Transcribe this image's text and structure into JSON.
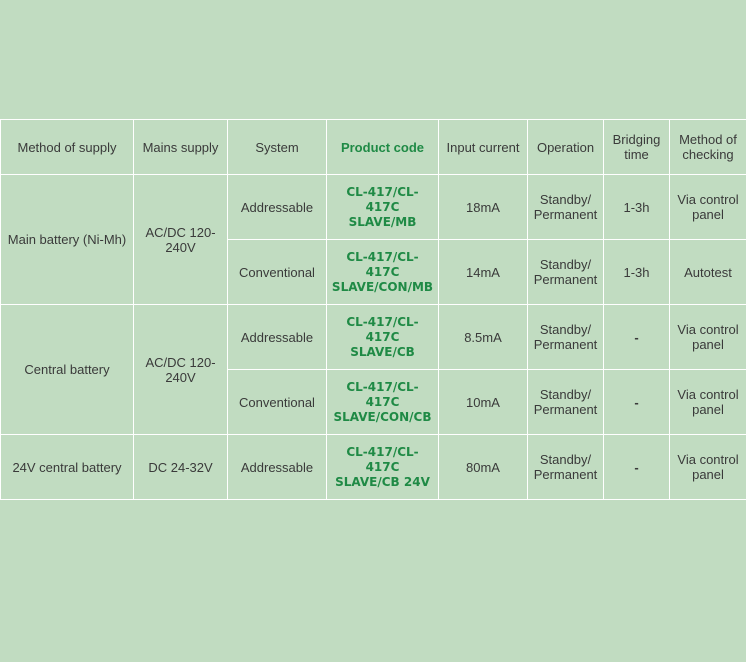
{
  "table": {
    "headers": {
      "method_of_supply": "Method of supply",
      "mains_supply": "Mains supply",
      "system": "System",
      "product_code": "Product code",
      "input_current": "Input current",
      "operation": "Operation",
      "bridging_time": "Bridging time",
      "method_of_checking": "Method of checking"
    },
    "groups": [
      {
        "method_of_supply": "Main battery (Ni-Mh)",
        "mains_supply": "AC/DC 120-240V",
        "rows": [
          {
            "system": "Addressable",
            "product_code_line1": "CL-417/CL-417C",
            "product_code_line2": "SLAVE/MB",
            "input_current": "18mA",
            "operation_line1": "Standby/",
            "operation_line2": "Permanent",
            "bridging_time": "1-3h",
            "method_of_checking": "Via control panel"
          },
          {
            "system": "Conventional",
            "product_code_line1": "CL-417/CL-417C",
            "product_code_line2": "SLAVE/CON/MB",
            "input_current": "14mA",
            "operation_line1": "Standby/",
            "operation_line2": "Permanent",
            "bridging_time": "1-3h",
            "method_of_checking": "Autotest"
          }
        ]
      },
      {
        "method_of_supply": "Central battery",
        "mains_supply": "AC/DC 120-240V",
        "rows": [
          {
            "system": "Addressable",
            "product_code_line1": "CL-417/CL-417C",
            "product_code_line2": "SLAVE/CB",
            "input_current": "8.5mA",
            "operation_line1": "Standby/",
            "operation_line2": "Permanent",
            "bridging_time": "-",
            "method_of_checking": "Via control panel"
          },
          {
            "system": "Conventional",
            "product_code_line1": "CL-417/CL-417C",
            "product_code_line2": "SLAVE/CON/CB",
            "input_current": "10mA",
            "operation_line1": "Standby/",
            "operation_line2": "Permanent",
            "bridging_time": "-",
            "method_of_checking": "Via control panel"
          }
        ]
      },
      {
        "method_of_supply": "24V central battery",
        "mains_supply": "DC 24-32V",
        "rows": [
          {
            "system": "Addressable",
            "product_code_line1": "CL-417/CL-417C",
            "product_code_line2": "SLAVE/CB 24V",
            "input_current": "80mA",
            "operation_line1": "Standby/",
            "operation_line2": "Permanent",
            "bridging_time": "-",
            "method_of_checking": "Via control panel"
          }
        ]
      }
    ]
  },
  "colors": {
    "background": "#c1dcc1",
    "border": "#ffffff",
    "text": "#3a3a3a",
    "product_code": "#1f8a45"
  }
}
